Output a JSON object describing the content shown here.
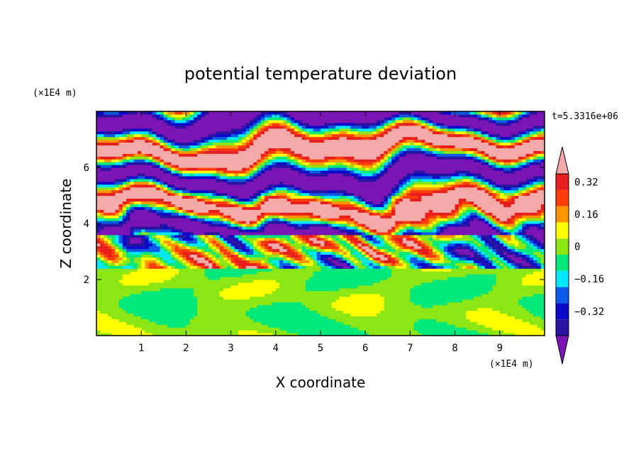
{
  "chart_data": {
    "type": "heatmap",
    "title": "potential temperature deviation",
    "xlabel": "X coordinate",
    "ylabel": "Z coordinate",
    "x_unit": "(×1E4 m)",
    "y_unit": "(×1E4 m)",
    "time_label": "t=5.3316e+06",
    "xlim": [
      0,
      10
    ],
    "ylim": [
      0,
      8
    ],
    "x_ticks": [
      "1",
      "2",
      "3",
      "4",
      "5",
      "6",
      "7",
      "8",
      "9"
    ],
    "y_ticks": [
      "2",
      "4",
      "6"
    ],
    "colorbar": {
      "levels": [
        -0.4,
        -0.32,
        -0.24,
        -0.16,
        -0.08,
        0,
        0.08,
        0.16,
        0.24,
        0.32,
        0.4
      ],
      "tick_labels": [
        "0.32",
        "0.16",
        "0",
        "−0.16",
        "−0.32"
      ],
      "tick_values": [
        0.32,
        0.16,
        0,
        -0.16,
        -0.32
      ],
      "colors": [
        "#7a14b4",
        "#2814a0",
        "#0a0ac8",
        "#0a5ae6",
        "#00e8ff",
        "#00e87a",
        "#8ce614",
        "#ffff00",
        "#ff9600",
        "#ff3c0a",
        "#e61e1e",
        "#f5aaaa"
      ]
    },
    "regions": [
      {
        "z_range": [
          0,
          2.45
        ],
        "description_value": "near 0 (green band, mixed -0.08..0.08)"
      },
      {
        "z_range": [
          2.45,
          3.6
        ],
        "description_value": "mixed -0.4..0.4"
      },
      {
        "z_range": [
          3.6,
          8
        ],
        "description_value": "alternating layers of >0.4 and <-0.4"
      }
    ]
  }
}
